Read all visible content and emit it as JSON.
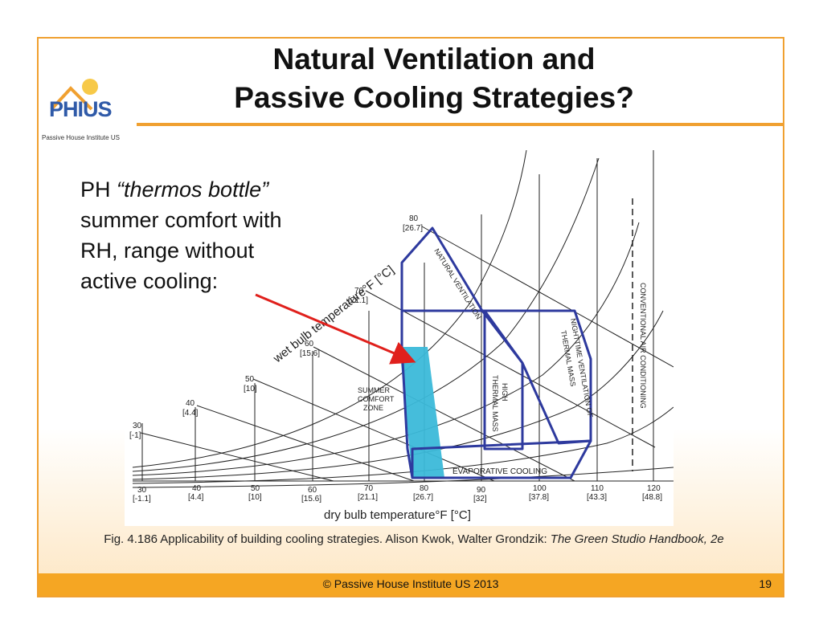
{
  "slide": {
    "title_line1": "Natural Ventilation and",
    "title_line2": "Passive Cooling Strategies?",
    "note_prefix": "PH ",
    "note_italic": "“thermos bottle”",
    "note_rest1": "summer comfort with",
    "note_rest2": "RH, range without",
    "note_rest3": "active cooling:",
    "caption_main": "Fig. 4.186 Applicability of building cooling strategies. Alison Kwok, Walter Grondzik: ",
    "caption_italic": "The Green Studio Handbook, 2e",
    "footer": "© Passive House Institute US 2013",
    "page_number": "19"
  },
  "logo": {
    "mark": "PHIUS",
    "subtitle": "Passive House Institute US"
  },
  "diagram": {
    "x_axis_label": "dry bulb temperature°F [°C]",
    "wet_bulb_label": "wet bulb temperature°F [°C]",
    "dry_bulb_ticks": [
      {
        "f": "30",
        "c": "[-1.1]"
      },
      {
        "f": "40",
        "c": "[4.4]"
      },
      {
        "f": "50",
        "c": "[10]"
      },
      {
        "f": "60",
        "c": "[15.6]"
      },
      {
        "f": "70",
        "c": "[21.1]"
      },
      {
        "f": "80",
        "c": "[26.7]"
      },
      {
        "f": "90",
        "c": "[32]"
      },
      {
        "f": "100",
        "c": "[37.8]"
      },
      {
        "f": "110",
        "c": "[43.3]"
      },
      {
        "f": "120",
        "c": "[48.8]"
      }
    ],
    "wet_bulb_ticks": [
      {
        "f": "30",
        "c": "[-1]"
      },
      {
        "f": "40",
        "c": "[4.4]"
      },
      {
        "f": "50",
        "c": "[10]"
      },
      {
        "f": "60",
        "c": "[15.6]"
      },
      {
        "f": "70",
        "c": "[21.1]"
      },
      {
        "f": "80",
        "c": "[26.7]"
      }
    ],
    "zones": {
      "natural_ventilation": "NATURAL VENTILATION",
      "summer_comfort": [
        "SUMMER",
        "COMFORT",
        "ZONE"
      ],
      "high_thermal_mass": [
        "HIGH",
        "THERMAL MASS"
      ],
      "nighttime_ventilation": [
        "NIGHTTIME VENTILATION OF",
        "THERMAL MASS"
      ],
      "evaporative_cooling": "EVAPORATIVE COOLING",
      "conventional_ac": "CONVENTIONAL AIR CONDITIONING"
    },
    "colors": {
      "zone_outline": "#2e3a9e",
      "comfort_fill": "#3bb9d9",
      "arrow": "#e0201c",
      "accent": "#f0a030"
    }
  }
}
